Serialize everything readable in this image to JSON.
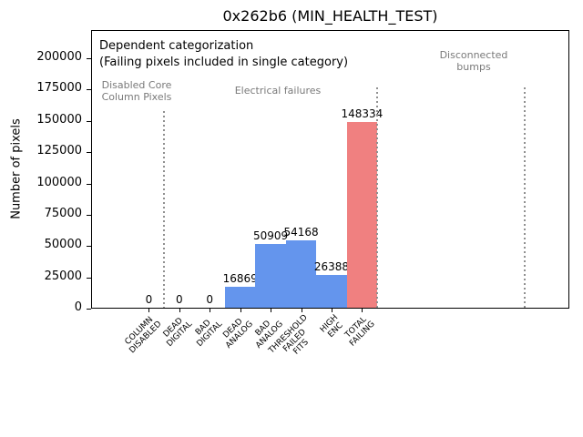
{
  "chart_data": {
    "type": "bar",
    "title": "0x262b6 (MIN_HEALTH_TEST)",
    "ylabel": "Number of pixels",
    "xlabel": "",
    "categories": [
      "COLUMN DISABLED",
      "DEAD DIGITAL",
      "BAD DIGITAL",
      "DEAD ANALOG",
      "BAD ANALOG",
      "THRESHOLD FAILED FITS",
      "HIGH ENC",
      "TOTAL FAILING"
    ],
    "category_label_lines": [
      [
        "COLUMN",
        "DISABLED"
      ],
      [
        "DEAD",
        "DIGITAL"
      ],
      [
        "BAD",
        "DIGITAL"
      ],
      [
        "DEAD",
        "ANALOG"
      ],
      [
        "BAD",
        "ANALOG"
      ],
      [
        "THRESHOLD",
        "FAILED",
        "FITS"
      ],
      [
        "HIGH",
        "ENC"
      ],
      [
        "TOTAL",
        "FAILING"
      ]
    ],
    "values": [
      0,
      0,
      0,
      16869,
      50909,
      54168,
      26388,
      148334
    ],
    "bar_colors": [
      "#6495ed",
      "#6495ed",
      "#6495ed",
      "#6495ed",
      "#6495ed",
      "#6495ed",
      "#6495ed",
      "#f08080"
    ],
    "yticks": [
      0,
      25000,
      50000,
      75000,
      100000,
      125000,
      150000,
      175000,
      200000
    ],
    "ylim": [
      0,
      222500
    ],
    "grid": false,
    "separators": {
      "line_style": "dotted",
      "color": "#909090",
      "positions_in_categories": [
        0.5,
        7.5,
        12.35
      ]
    }
  },
  "annotations": {
    "dependent_line1": "Dependent categorization",
    "dependent_line2": "(Failing pixels included in single category)",
    "region_disabled_line1": "Disabled Core",
    "region_disabled_line2": "Column Pixels",
    "region_electrical": "Electrical failures",
    "region_disconnected_line1": "Disconnected",
    "region_disconnected_line2": "bumps"
  },
  "colors": {
    "bar_blue": "#6495ed",
    "bar_red": "#f08080",
    "annotation_gray": "#7a7a7a",
    "axis_black": "#000000",
    "background": "#ffffff"
  }
}
